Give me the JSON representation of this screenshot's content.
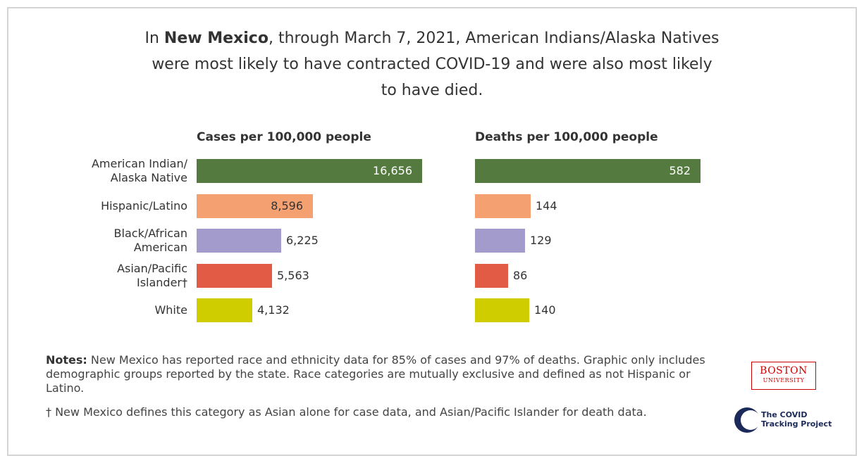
{
  "title": {
    "prefix": "In ",
    "bold": "New Mexico",
    "line1_rest": ", through March 7, 2021, American Indians/Alaska Natives",
    "line2": "were most likely to have contracted COVID-19 and were also most likely",
    "line3": "to have died."
  },
  "colors": {
    "american_indian": "#547a3f",
    "hispanic": "#f4a071",
    "black": "#a39bcc",
    "asian": "#e25b45",
    "white": "#cfcc00"
  },
  "chart_data": [
    {
      "type": "bar",
      "orientation": "horizontal",
      "title": "Cases per 100,000 people",
      "categories": [
        "American Indian/ Alaska Native",
        "Hispanic/Latino",
        "Black/African American",
        "Asian/Pacific Islander†",
        "White"
      ],
      "values": [
        16656,
        8596,
        6225,
        5563,
        4132
      ],
      "value_labels": [
        "16,656",
        "8,596",
        "6,225",
        "5,563",
        "4,132"
      ],
      "xlim": [
        0,
        16656
      ],
      "grid": false
    },
    {
      "type": "bar",
      "orientation": "horizontal",
      "title": "Deaths per 100,000 people",
      "categories": [
        "American Indian/ Alaska Native",
        "Hispanic/Latino",
        "Black/African American",
        "Asian/Pacific Islander†",
        "White"
      ],
      "values": [
        582,
        144,
        129,
        86,
        140
      ],
      "value_labels": [
        "582",
        "144",
        "129",
        "86",
        "140"
      ],
      "xlim": [
        0,
        582
      ],
      "grid": false
    }
  ],
  "categories": {
    "american_indian": {
      "line1": "American Indian/",
      "line2": "Alaska Native"
    },
    "hispanic": {
      "line1": "Hispanic/Latino"
    },
    "black": {
      "line1": "Black/African",
      "line2": "American"
    },
    "asian": {
      "line1": "Asian/Pacific",
      "line2": "Islander†"
    },
    "white": {
      "line1": "White"
    }
  },
  "notes": {
    "label": "Notes:",
    "text": " New Mexico has reported race and ethnicity data for 85% of cases and 97% of deaths. Graphic only includes demographic groups reported by the state. Race categories are mutually exclusive and defined as not Hispanic or Latino.",
    "dagger": "† New Mexico defines this category as Asian alone for case data, and Asian/Pacific Islander for death data."
  },
  "logos": {
    "bu_line1": "BOSTON",
    "bu_line2": "UNIVERSITY",
    "ctp_line1": "The COVID",
    "ctp_line2": "Tracking Project"
  }
}
